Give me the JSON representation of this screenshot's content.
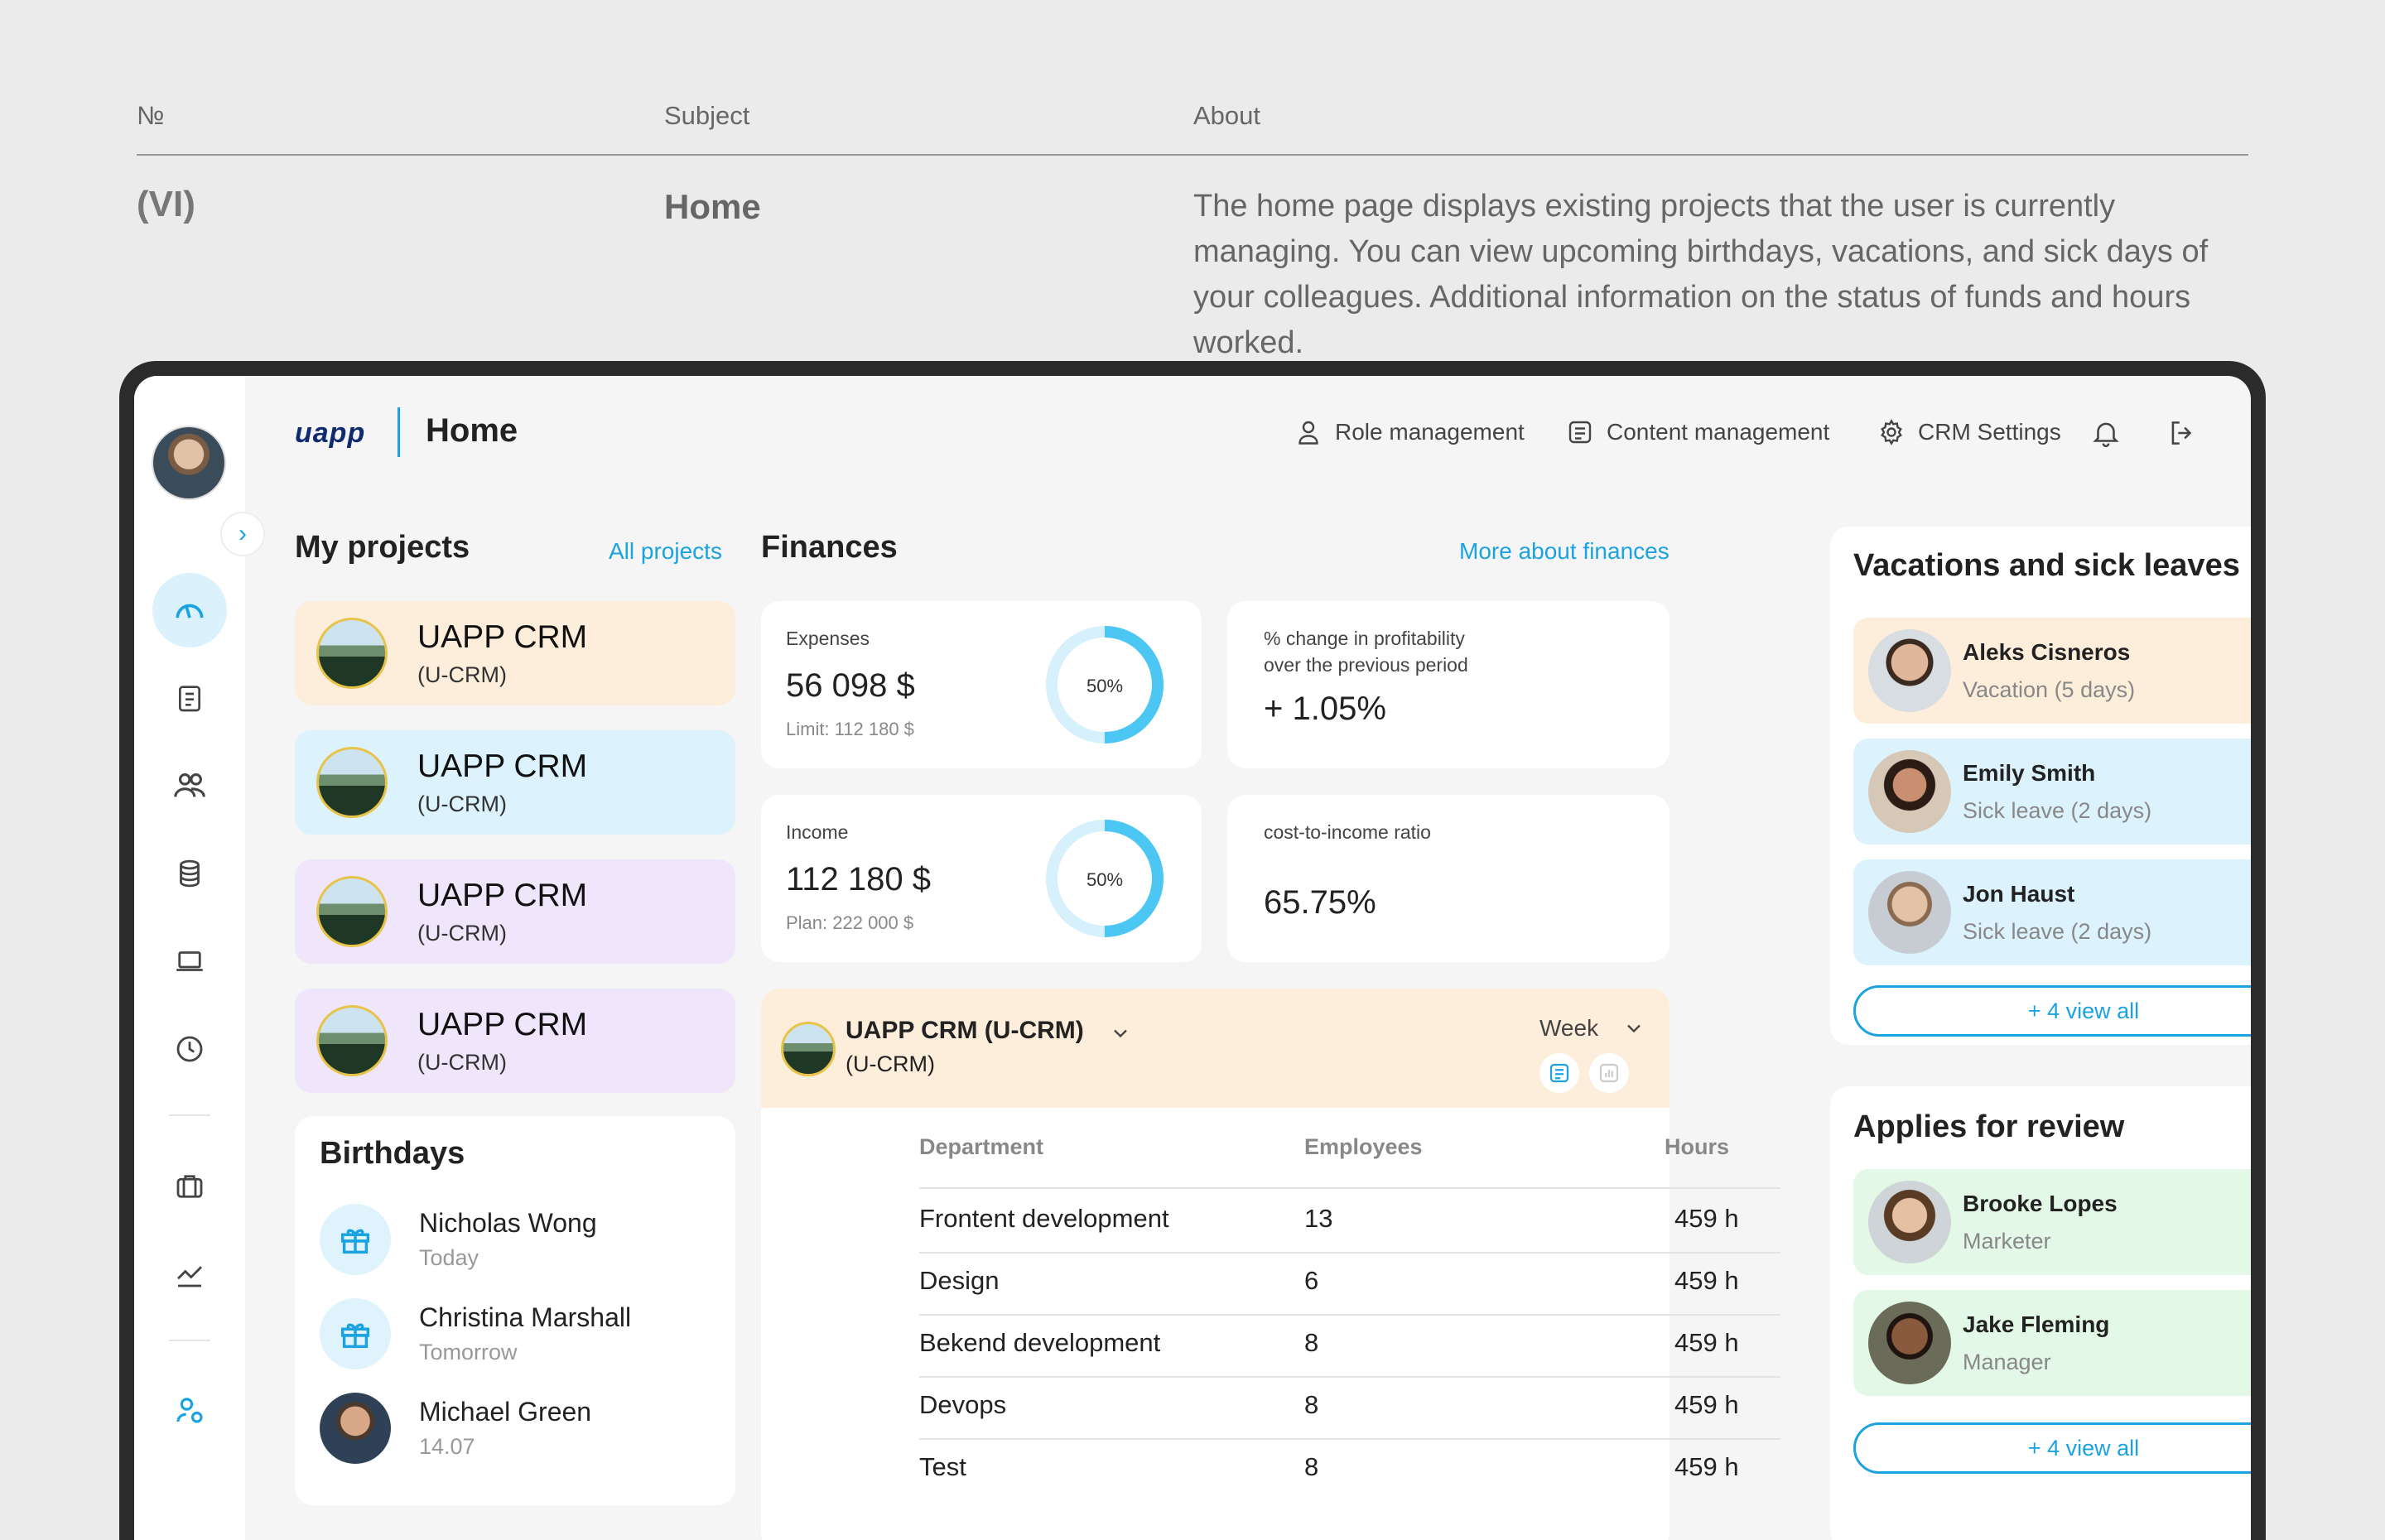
{
  "doc_table": {
    "col_no": "№",
    "col_subject": "Subject",
    "col_about": "About",
    "row_no": "(VI)",
    "row_subject": "Home",
    "row_about": "The home page displays existing projects that the user is currently managing. You can view upcoming birthdays, vacations, and sick days of your colleagues. Additional information on the status of funds and hours worked."
  },
  "header": {
    "logo": "uapp",
    "title": "Home",
    "role_management": "Role management",
    "content_management": "Content management",
    "crm_settings": "CRM Settings"
  },
  "my_projects": {
    "title": "My projects",
    "link": "All projects",
    "items": [
      {
        "name": "UAPP CRM",
        "code": "(U-CRM)",
        "color": "#fdeedb"
      },
      {
        "name": "UAPP CRM",
        "code": "(U-CRM)",
        "color": "#dcf2fc"
      },
      {
        "name": "UAPP CRM",
        "code": "(U-CRM)",
        "color": "#f0e6fb"
      },
      {
        "name": "UAPP CRM",
        "code": "(U-CRM)",
        "color": "#f0e6fb"
      }
    ]
  },
  "birthdays": {
    "title": "Birthdays",
    "items": [
      {
        "name": "Nicholas Wong",
        "when": "Today"
      },
      {
        "name": "Christina Marshall",
        "when": "Tomorrow"
      },
      {
        "name": "Michael Green",
        "when": "14.07"
      }
    ]
  },
  "finances": {
    "title": "Finances",
    "link": "More about finances",
    "expenses": {
      "label": "Expenses",
      "value": "56 098 $",
      "limit": "Limit: 112 180 $",
      "percent_label": "50%",
      "percent": 50
    },
    "income": {
      "label": "Income",
      "value": "112 180 $",
      "plan": "Plan: 222 000 $",
      "percent_label": "50%",
      "percent": 50
    },
    "profitability": {
      "label_line1": "% change in profitability",
      "label_line2": "over the previous period",
      "value": "+ 1.05%"
    },
    "cost_ratio": {
      "label": "cost-to-income ratio",
      "value": "65.75%"
    }
  },
  "hours": {
    "project_name": "UAPP CRM (U-CRM)",
    "project_code": "(U-CRM)",
    "period": "Week",
    "columns": [
      "Department",
      "Employees",
      "Hours"
    ],
    "rows": [
      {
        "dept": "Frontent development",
        "employees": "13",
        "hours": "459 h"
      },
      {
        "dept": "Design",
        "employees": "6",
        "hours": "459 h"
      },
      {
        "dept": "Bekend development",
        "employees": "8",
        "hours": "459 h"
      },
      {
        "dept": "Devops",
        "employees": "8",
        "hours": "459 h"
      },
      {
        "dept": "Test",
        "employees": "8",
        "hours": "459 h"
      }
    ]
  },
  "vacations": {
    "title": "Vacations and sick leaves",
    "items": [
      {
        "name": "Aleks Cisneros",
        "status": "Vacation (5 days)",
        "icon": "plane-icon",
        "color": "#fdeedb"
      },
      {
        "name": "Emily Smith",
        "status": "Sick leave (2 days)",
        "icon": "pill-icon",
        "color": "#dcf2fc"
      },
      {
        "name": "Jon Haust",
        "status": "Sick leave (2 days)",
        "icon": "pill-icon",
        "color": "#dcf2fc"
      }
    ],
    "view_all": "+ 4 view all"
  },
  "reviews": {
    "title": "Applies for review",
    "items": [
      {
        "name": "Brooke Lopes",
        "role": "Marketer",
        "color": "#e3f8e7"
      },
      {
        "name": "Jake Fleming",
        "role": "Manager",
        "color": "#e3f8e7"
      }
    ],
    "view_all": "+ 4 view all"
  },
  "colors": {
    "accent": "#1aa3e0",
    "green": "#2bb34a",
    "orange": "#f2a93b"
  }
}
